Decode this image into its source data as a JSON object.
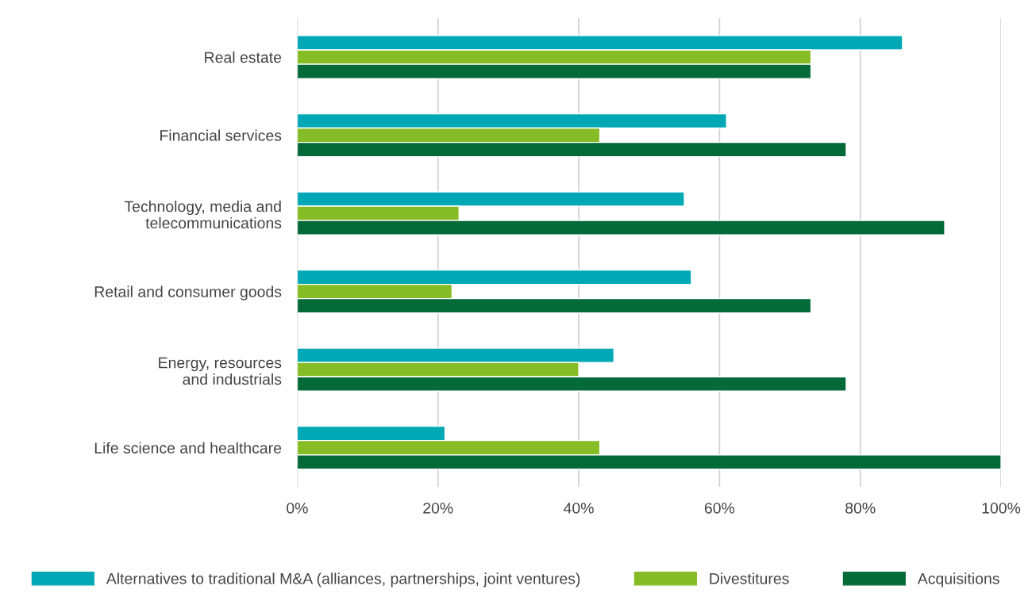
{
  "chart_data": {
    "type": "bar",
    "orientation": "horizontal",
    "categories": [
      "Real estate",
      "Financial services",
      "Technology, media and\ntelecommunications",
      "Retail and consumer goods",
      "Energy, resources\nand industrials",
      "Life science and healthcare"
    ],
    "series": [
      {
        "name": "Alternatives to traditional M&A (alliances, partnerships, joint ventures)",
        "color": "#00a8b5",
        "values": [
          86,
          61,
          55,
          56,
          45,
          21
        ]
      },
      {
        "name": "Divestitures",
        "color": "#86bc25",
        "values": [
          73,
          43,
          23,
          22,
          40,
          43
        ]
      },
      {
        "name": "Acquisitions",
        "color": "#046a38",
        "values": [
          73,
          78,
          92,
          73,
          78,
          100
        ]
      }
    ],
    "xlim": [
      0,
      100
    ],
    "xticks": [
      {
        "value": 0,
        "label": "0%"
      },
      {
        "value": 20,
        "label": "20%"
      },
      {
        "value": 40,
        "label": "40%"
      },
      {
        "value": 60,
        "label": "60%"
      },
      {
        "value": 80,
        "label": "80%"
      },
      {
        "value": 100,
        "label": "100%"
      }
    ],
    "grid": "x",
    "legend": "bottom"
  }
}
